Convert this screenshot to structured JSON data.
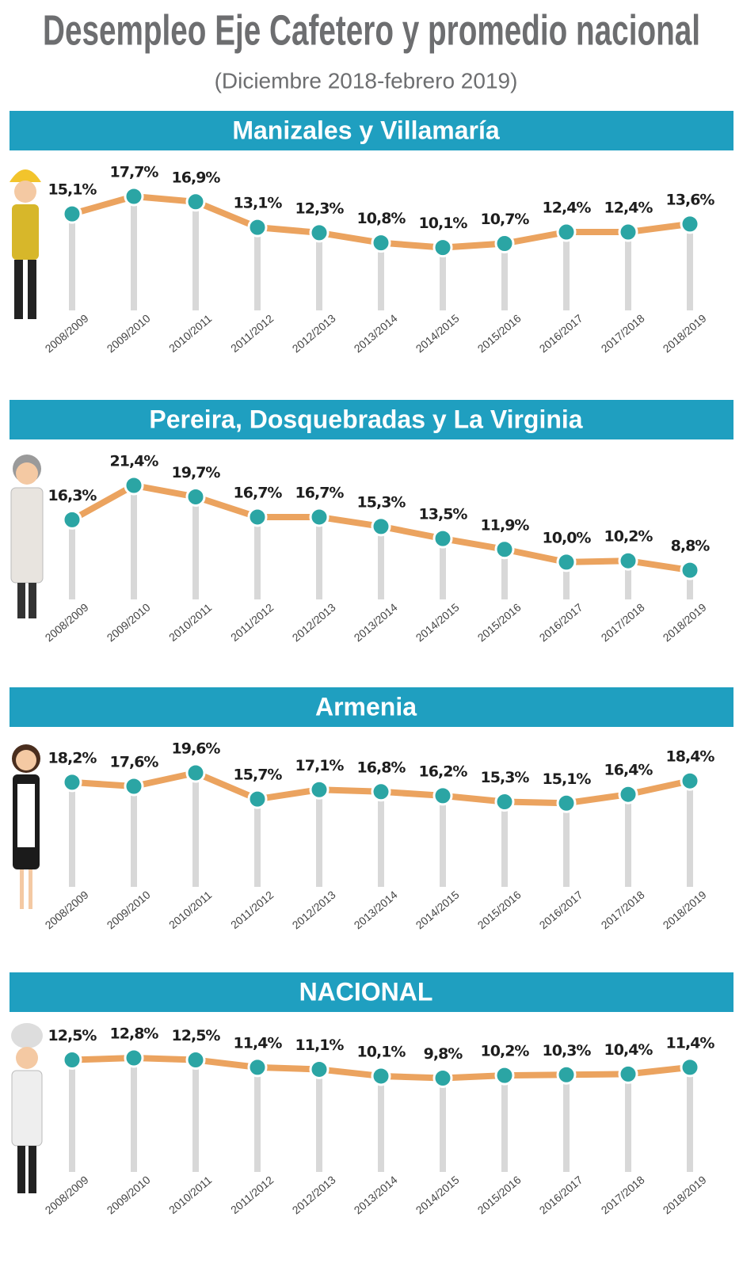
{
  "title": "Desempleo Eje Cafetero y promedio nacional",
  "subtitle": "(Diciembre 2018-febrero 2019)",
  "chart_data": [
    {
      "type": "line",
      "title": "Manizales y Villamaría",
      "categories": [
        "2008/2009",
        "2009/2010",
        "2010/2011",
        "2011/2012",
        "2012/2013",
        "2013/2014",
        "2014/2015",
        "2015/2016",
        "2016/2017",
        "2017/2018",
        "2018/2019"
      ],
      "values": [
        15.1,
        17.7,
        16.9,
        13.1,
        12.3,
        10.8,
        10.1,
        10.7,
        12.4,
        12.4,
        13.6
      ],
      "value_labels": [
        "15,1%",
        "17,7%",
        "16,9%",
        "13,1%",
        "12,3%",
        "10,8%",
        "10,1%",
        "10,7%",
        "12,4%",
        "12,4%",
        "13,6%"
      ],
      "color": "#eba35f",
      "marker_color": "#2ba5a4",
      "title_background": "#1f9fc0"
    },
    {
      "type": "line",
      "title": "Pereira, Dosquebradas y La Virginia",
      "categories": [
        "2008/2009",
        "2009/2010",
        "2010/2011",
        "2011/2012",
        "2012/2013",
        "2013/2014",
        "2014/2015",
        "2015/2016",
        "2016/2017",
        "2017/2018",
        "2018/2019"
      ],
      "values": [
        16.3,
        21.4,
        19.7,
        16.7,
        16.7,
        15.3,
        13.5,
        11.9,
        10.0,
        10.2,
        8.8
      ],
      "value_labels": [
        "16,3%",
        "21,4%",
        "19,7%",
        "16,7%",
        "16,7%",
        "15,3%",
        "13,5%",
        "11,9%",
        "10,0%",
        "10,2%",
        "8,8%"
      ],
      "color": "#eba35f",
      "marker_color": "#2ba5a4",
      "title_background": "#1f9fc0"
    },
    {
      "type": "line",
      "title": "Armenia",
      "categories": [
        "2008/2009",
        "2009/2010",
        "2010/2011",
        "2011/2012",
        "2012/2013",
        "2013/2014",
        "2014/2015",
        "2015/2016",
        "2016/2017",
        "2017/2018",
        "2018/2019"
      ],
      "values": [
        18.2,
        17.6,
        19.6,
        15.7,
        17.1,
        16.8,
        16.2,
        15.3,
        15.1,
        16.4,
        18.4
      ],
      "value_labels": [
        "18,2%",
        "17,6%",
        "19,6%",
        "15,7%",
        "17,1%",
        "16,8%",
        "16,2%",
        "15,3%",
        "15,1%",
        "16,4%",
        "18,4%"
      ],
      "color": "#eba35f",
      "marker_color": "#2ba5a4",
      "title_background": "#1f9fc0"
    },
    {
      "type": "line",
      "title": "NACIONAL",
      "categories": [
        "2008/2009",
        "2009/2010",
        "2010/2011",
        "2011/2012",
        "2012/2013",
        "2013/2014",
        "2014/2015",
        "2015/2016",
        "2016/2017",
        "2017/2018",
        "2018/2019"
      ],
      "values": [
        12.5,
        12.8,
        12.5,
        11.4,
        11.1,
        10.1,
        9.8,
        10.2,
        10.3,
        10.4,
        11.4
      ],
      "value_labels": [
        "12,5%",
        "12,8%",
        "12,5%",
        "11,4%",
        "11,1%",
        "10,1%",
        "9,8%",
        "10,2%",
        "10,3%",
        "10,4%",
        "11,4%"
      ],
      "color": "#eba35f",
      "marker_color": "#2ba5a4",
      "title_background": "#1f9fc0"
    }
  ]
}
